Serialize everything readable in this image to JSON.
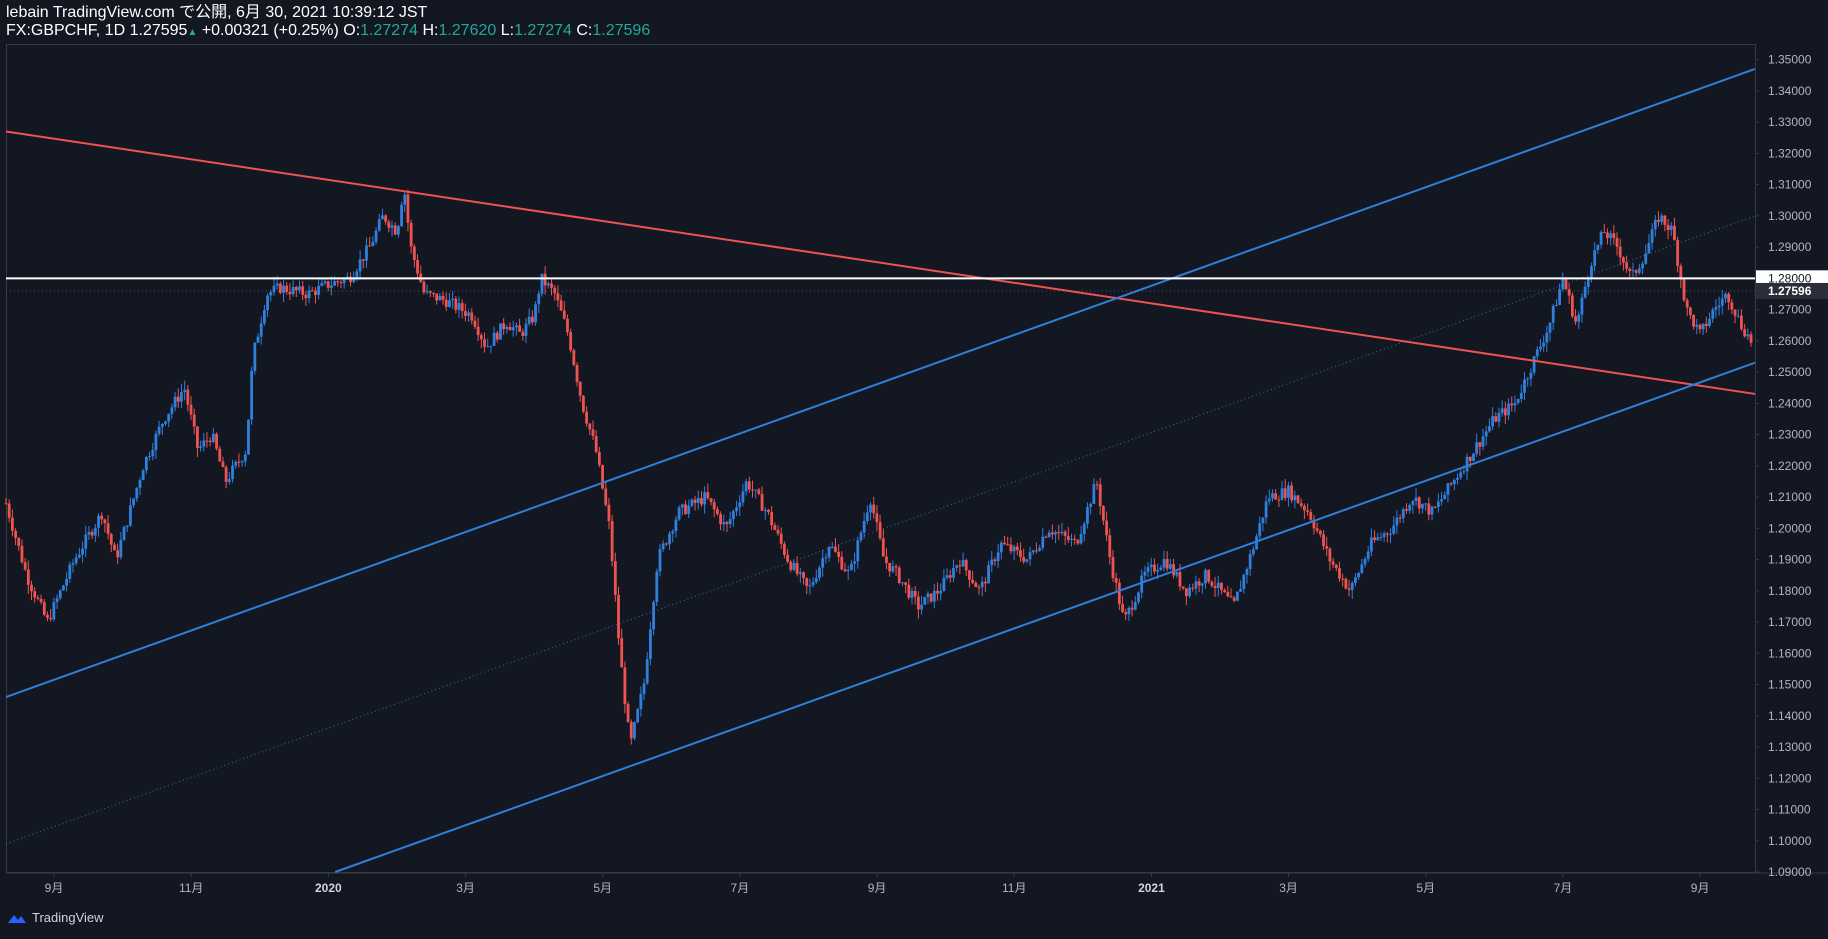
{
  "header": {
    "line1": "lebain TradingView.com で公開, 6月 30, 2021 10:39:12 JST",
    "symbol": "FX:GBPCHF, 1D",
    "last": "1.27595",
    "change": "+0.00321 (+0.25%)",
    "o_label": "O:",
    "o_value": "1.27274",
    "h_label": "H:",
    "h_value": "1.27620",
    "l_label": "L:",
    "l_value": "1.27274",
    "c_label": "C:",
    "c_value": "1.27596",
    "up_arrow": "▲"
  },
  "footer": {
    "brand": "TradingView"
  },
  "colors": {
    "background": "#131722",
    "up": "#2f7fdc",
    "down": "#ef5350",
    "trend_red": "#ef5350",
    "trend_blue": "#2f7fdc",
    "level": "#ffffff",
    "axis_text": "#b2b5be"
  },
  "chart_data": {
    "type": "candlestick",
    "symbol": "FX:GBPCHF",
    "interval": "1D",
    "ylim": [
      1.09,
      1.355
    ],
    "y_ticks": [
      "1.09000",
      "1.10000",
      "1.11000",
      "1.12000",
      "1.13000",
      "1.14000",
      "1.15000",
      "1.16000",
      "1.17000",
      "1.18000",
      "1.19000",
      "1.20000",
      "1.21000",
      "1.22000",
      "1.23000",
      "1.24000",
      "1.25000",
      "1.26000",
      "1.27000",
      "1.29000",
      "1.30000",
      "1.31000",
      "1.32000",
      "1.33000",
      "1.34000",
      "1.35000"
    ],
    "x_ticks": [
      "9月",
      "11月",
      "2020",
      "3月",
      "5月",
      "7月",
      "9月",
      "11月",
      "2021",
      "3月",
      "5月",
      "7月",
      "9月"
    ],
    "x_tick_months": [
      0.7,
      2.7,
      4.7,
      6.7,
      8.7,
      10.7,
      12.7,
      14.7,
      16.7,
      18.7,
      20.7,
      22.7,
      24.7
    ],
    "last_price_label": "1.27596",
    "level_label": "1.28000",
    "horizontal_level": 1.28,
    "price_path": [
      [
        0.0,
        1.208
      ],
      [
        0.3,
        1.185
      ],
      [
        0.6,
        1.17
      ],
      [
        1.0,
        1.19
      ],
      [
        1.4,
        1.205
      ],
      [
        1.6,
        1.19
      ],
      [
        2.0,
        1.22
      ],
      [
        2.3,
        1.235
      ],
      [
        2.6,
        1.245
      ],
      [
        2.8,
        1.225
      ],
      [
        3.0,
        1.23
      ],
      [
        3.2,
        1.215
      ],
      [
        3.5,
        1.225
      ],
      [
        3.6,
        1.255
      ],
      [
        3.8,
        1.275
      ],
      [
        4.0,
        1.277
      ],
      [
        4.4,
        1.275
      ],
      [
        4.7,
        1.278
      ],
      [
        5.0,
        1.28
      ],
      [
        5.3,
        1.29
      ],
      [
        5.5,
        1.3
      ],
      [
        5.7,
        1.295
      ],
      [
        5.8,
        1.31
      ],
      [
        5.9,
        1.29
      ],
      [
        6.1,
        1.275
      ],
      [
        6.4,
        1.273
      ],
      [
        6.8,
        1.268
      ],
      [
        7.0,
        1.258
      ],
      [
        7.3,
        1.266
      ],
      [
        7.5,
        1.262
      ],
      [
        7.7,
        1.268
      ],
      [
        7.8,
        1.28
      ],
      [
        8.0,
        1.275
      ],
      [
        8.2,
        1.262
      ],
      [
        8.4,
        1.24
      ],
      [
        8.6,
        1.225
      ],
      [
        8.8,
        1.2
      ],
      [
        8.95,
        1.16
      ],
      [
        9.1,
        1.13
      ],
      [
        9.3,
        1.15
      ],
      [
        9.5,
        1.19
      ],
      [
        9.8,
        1.205
      ],
      [
        10.2,
        1.21
      ],
      [
        10.5,
        1.2
      ],
      [
        10.8,
        1.215
      ],
      [
        11.1,
        1.205
      ],
      [
        11.4,
        1.19
      ],
      [
        11.7,
        1.18
      ],
      [
        12.0,
        1.195
      ],
      [
        12.3,
        1.185
      ],
      [
        12.6,
        1.21
      ],
      [
        12.8,
        1.19
      ],
      [
        13.0,
        1.185
      ],
      [
        13.3,
        1.175
      ],
      [
        13.6,
        1.18
      ],
      [
        13.9,
        1.19
      ],
      [
        14.2,
        1.18
      ],
      [
        14.5,
        1.195
      ],
      [
        14.9,
        1.19
      ],
      [
        15.2,
        1.2
      ],
      [
        15.6,
        1.195
      ],
      [
        15.9,
        1.215
      ],
      [
        16.1,
        1.19
      ],
      [
        16.3,
        1.17
      ],
      [
        16.6,
        1.185
      ],
      [
        16.9,
        1.19
      ],
      [
        17.2,
        1.18
      ],
      [
        17.5,
        1.185
      ],
      [
        17.9,
        1.175
      ],
      [
        18.2,
        1.195
      ],
      [
        18.4,
        1.21
      ],
      [
        18.7,
        1.212
      ],
      [
        19.0,
        1.205
      ],
      [
        19.3,
        1.19
      ],
      [
        19.6,
        1.18
      ],
      [
        19.9,
        1.195
      ],
      [
        20.2,
        1.2
      ],
      [
        20.5,
        1.21
      ],
      [
        20.8,
        1.205
      ],
      [
        21.1,
        1.215
      ],
      [
        21.4,
        1.225
      ],
      [
        21.7,
        1.235
      ],
      [
        22.0,
        1.24
      ],
      [
        22.3,
        1.255
      ],
      [
        22.5,
        1.265
      ],
      [
        22.7,
        1.28
      ],
      [
        22.9,
        1.265
      ],
      [
        23.1,
        1.285
      ],
      [
        23.3,
        1.295
      ],
      [
        23.5,
        1.29
      ],
      [
        23.7,
        1.28
      ],
      [
        23.9,
        1.288
      ],
      [
        24.1,
        1.3
      ],
      [
        24.3,
        1.295
      ],
      [
        24.5,
        1.27
      ],
      [
        24.7,
        1.262
      ],
      [
        24.9,
        1.27
      ],
      [
        25.1,
        1.275
      ],
      [
        25.3,
        1.265
      ],
      [
        25.5,
        1.258
      ],
      [
        25.7,
        1.27
      ],
      [
        25.9,
        1.275
      ],
      [
        26.1,
        1.27
      ],
      [
        26.3,
        1.275
      ],
      [
        26.5,
        1.265
      ],
      [
        26.7,
        1.27
      ],
      [
        26.9,
        1.278
      ],
      [
        27.0,
        1.276
      ]
    ],
    "trend_lines": [
      {
        "color_key": "trend_red",
        "style": "solid",
        "p1": [
          0.0,
          1.327
        ],
        "p2": [
          25.5,
          1.243
        ]
      },
      {
        "color_key": "trend_blue",
        "style": "solid",
        "p1": [
          0.0,
          1.146
        ],
        "p2": [
          25.5,
          1.347
        ]
      },
      {
        "color_key": "trend_blue",
        "style": "solid",
        "p1": [
          4.8,
          1.09
        ],
        "p2": [
          25.5,
          1.253
        ]
      },
      {
        "color_key": "trend_blue",
        "style": "dotted",
        "p1": [
          0.0,
          1.099
        ],
        "p2": [
          25.5,
          1.3
        ]
      }
    ]
  }
}
